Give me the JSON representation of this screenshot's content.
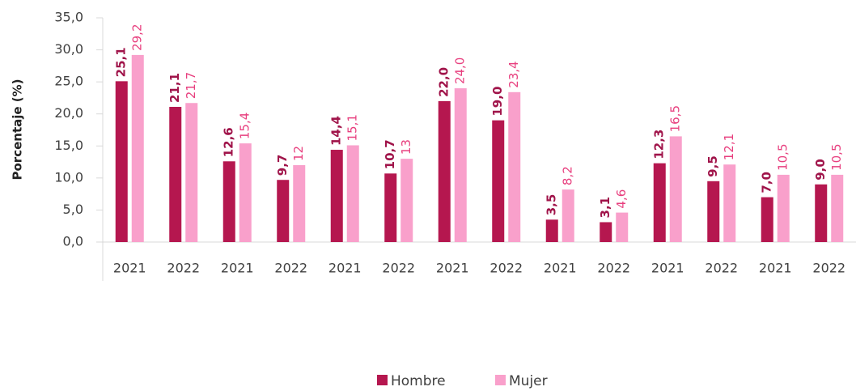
{
  "chart_data": {
    "type": "bar",
    "y_axis_label": "Porcentaje (%)",
    "categories": [
      "2021",
      "2022",
      "2021",
      "2022",
      "2021",
      "2022",
      "2021",
      "2022",
      "2021",
      "2022",
      "2021",
      "2022",
      "2021",
      "2022"
    ],
    "series": [
      {
        "name": "Hombre",
        "color": "#b5174f",
        "label_color": "#a0144a",
        "values": [
          25.1,
          21.1,
          12.6,
          9.7,
          14.4,
          10.7,
          22.0,
          19.0,
          3.5,
          3.1,
          12.3,
          9.5,
          7.0,
          9.0
        ],
        "value_labels": [
          "25,1",
          "21,1",
          "12,6",
          "9,7",
          "14,4",
          "10,7",
          "22,0",
          "19,0",
          "3,5",
          "3,1",
          "12,3",
          "9,5",
          "7,0",
          "9,0"
        ]
      },
      {
        "name": "Mujer",
        "color": "#f9a0cb",
        "label_color": "#e8407f",
        "values": [
          29.2,
          21.7,
          15.4,
          12,
          15.1,
          13,
          24.0,
          23.4,
          8.2,
          4.6,
          16.5,
          12.1,
          10.5,
          10.5
        ],
        "value_labels": [
          "29,2",
          "21,7",
          "15,4",
          "12",
          "15,1",
          "13",
          "24,0",
          "23,4",
          "8,2",
          "4,6",
          "16,5",
          "12,1",
          "10,5",
          "10,5"
        ]
      }
    ],
    "ylim": [
      0,
      35
    ],
    "yticks": [
      {
        "value": 0,
        "label": "0,0"
      },
      {
        "value": 5,
        "label": "5,0"
      },
      {
        "value": 10,
        "label": "10,0"
      },
      {
        "value": 15,
        "label": "15,0"
      },
      {
        "value": 20,
        "label": "20,0"
      },
      {
        "value": 25,
        "label": "25,0"
      },
      {
        "value": 30,
        "label": "30,0"
      },
      {
        "value": 35,
        "label": "35,0"
      }
    ],
    "grid": false,
    "legend": "bottom"
  }
}
